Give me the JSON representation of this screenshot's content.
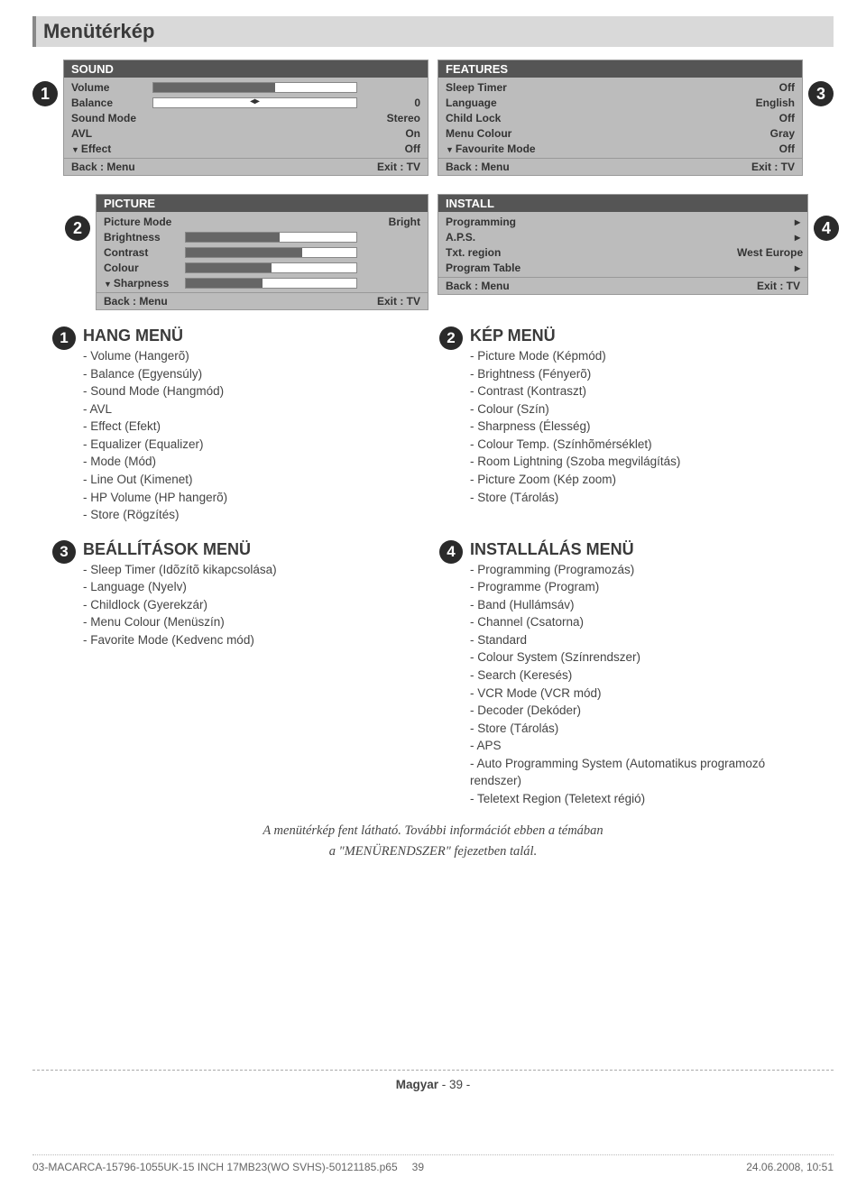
{
  "page": {
    "title": "Menütérkép",
    "footer_note_line1": "A menütérkép fent látható. További információt ebben a témában",
    "footer_note_line2": "a \"MENÜRENDSZER\" fejezetben talál.",
    "page_label": "Magyar",
    "page_number": "- 39 -",
    "doc_file": "03-MACARCA-15796-1055UK-15 INCH 17MB23(WO SVHS)-50121185.p65",
    "doc_pagenum": "39",
    "doc_timestamp": "24.06.2008, 10:51"
  },
  "menus": {
    "sound": {
      "title": "SOUND",
      "back": "Back : Menu",
      "exit": "Exit : TV",
      "rows": [
        {
          "label": "Volume",
          "bar_pct": 60,
          "value": ""
        },
        {
          "label": "Balance",
          "bar_pct": 0,
          "value": "0",
          "center_marker": true
        },
        {
          "label": "Sound Mode",
          "bar_pct": null,
          "value": "Stereo"
        },
        {
          "label": "AVL",
          "bar_pct": null,
          "value": "On"
        },
        {
          "label": "Effect",
          "bar_pct": null,
          "value": "Off",
          "arrow": true
        }
      ]
    },
    "features": {
      "title": "FEATURES",
      "back": "Back : Menu",
      "exit": "Exit : TV",
      "rows": [
        {
          "label": "Sleep Timer",
          "value": "Off"
        },
        {
          "label": "Language",
          "value": "English"
        },
        {
          "label": "Child Lock",
          "value": "Off"
        },
        {
          "label": "Menu Colour",
          "value": "Gray"
        },
        {
          "label": "Favourite Mode",
          "value": "Off",
          "arrow": true
        }
      ]
    },
    "picture": {
      "title": "PICTURE",
      "back": "Back : Menu",
      "exit": "Exit : TV",
      "rows": [
        {
          "label": "Picture Mode",
          "bar_pct": null,
          "value": "Bright"
        },
        {
          "label": "Brightness",
          "bar_pct": 55,
          "value": ""
        },
        {
          "label": "Contrast",
          "bar_pct": 68,
          "value": ""
        },
        {
          "label": "Colour",
          "bar_pct": 50,
          "value": ""
        },
        {
          "label": "Sharpness",
          "bar_pct": 45,
          "value": "",
          "arrow": true
        }
      ]
    },
    "install": {
      "title": "INSTALL",
      "back": "Back : Menu",
      "exit": "Exit : TV",
      "rows": [
        {
          "label": "Programming",
          "value": "▸"
        },
        {
          "label": "A.P.S.",
          "value": "▸"
        },
        {
          "label": "Txt. region",
          "value": "West Europe"
        },
        {
          "label": "Program Table",
          "value": "▸"
        }
      ]
    }
  },
  "badges": {
    "n1": "1",
    "n2": "2",
    "n3": "3",
    "n4": "4"
  },
  "descriptions": {
    "hang": {
      "title": "HANG MENÜ",
      "items": [
        "- Volume (Hangerõ)",
        "- Balance (Egyensúly)",
        "- Sound Mode (Hangmód)",
        "- AVL",
        "- Effect (Efekt)",
        "- Equalizer (Equalizer)",
        "- Mode (Mód)",
        "- Line Out (Kimenet)",
        "- HP Volume (HP hangerõ)",
        "- Store (Rögzítés)"
      ]
    },
    "kep": {
      "title": "KÉP MENÜ",
      "items": [
        "- Picture Mode (Képmód)",
        "- Brightness (Fényerõ)",
        "- Contrast (Kontraszt)",
        "- Colour (Szín)",
        "- Sharpness (Élesség)",
        "- Colour Temp. (Színhõmérséklet)",
        "- Room Lightning (Szoba megvilágítás)",
        "- Picture Zoom (Kép zoom)",
        "- Store (Tárolás)"
      ]
    },
    "beall": {
      "title": "BEÁLLÍTÁSOK MENÜ",
      "items": [
        "- Sleep Timer (Idõzítõ kikapcsolása)",
        "- Language (Nyelv)",
        "- Childlock (Gyerekzár)",
        "- Menu Colour (Menüszín)",
        "- Favorite Mode (Kedvenc mód)"
      ]
    },
    "install": {
      "title": "INSTALLÁLÁS MENÜ",
      "items": [
        "- Programming (Programozás)",
        "- Programme (Program)",
        "- Band (Hullámsáv)",
        "- Channel (Csatorna)",
        "- Standard",
        "- Colour System (Színrendszer)",
        "- Search (Keresés)",
        "- VCR Mode (VCR mód)",
        "- Decoder (Dekóder)",
        "- Store (Tárolás)",
        "- APS",
        "- Auto Programming System (Automatikus programozó rendszer)",
        "- Teletext Region (Teletext régió)"
      ]
    }
  }
}
